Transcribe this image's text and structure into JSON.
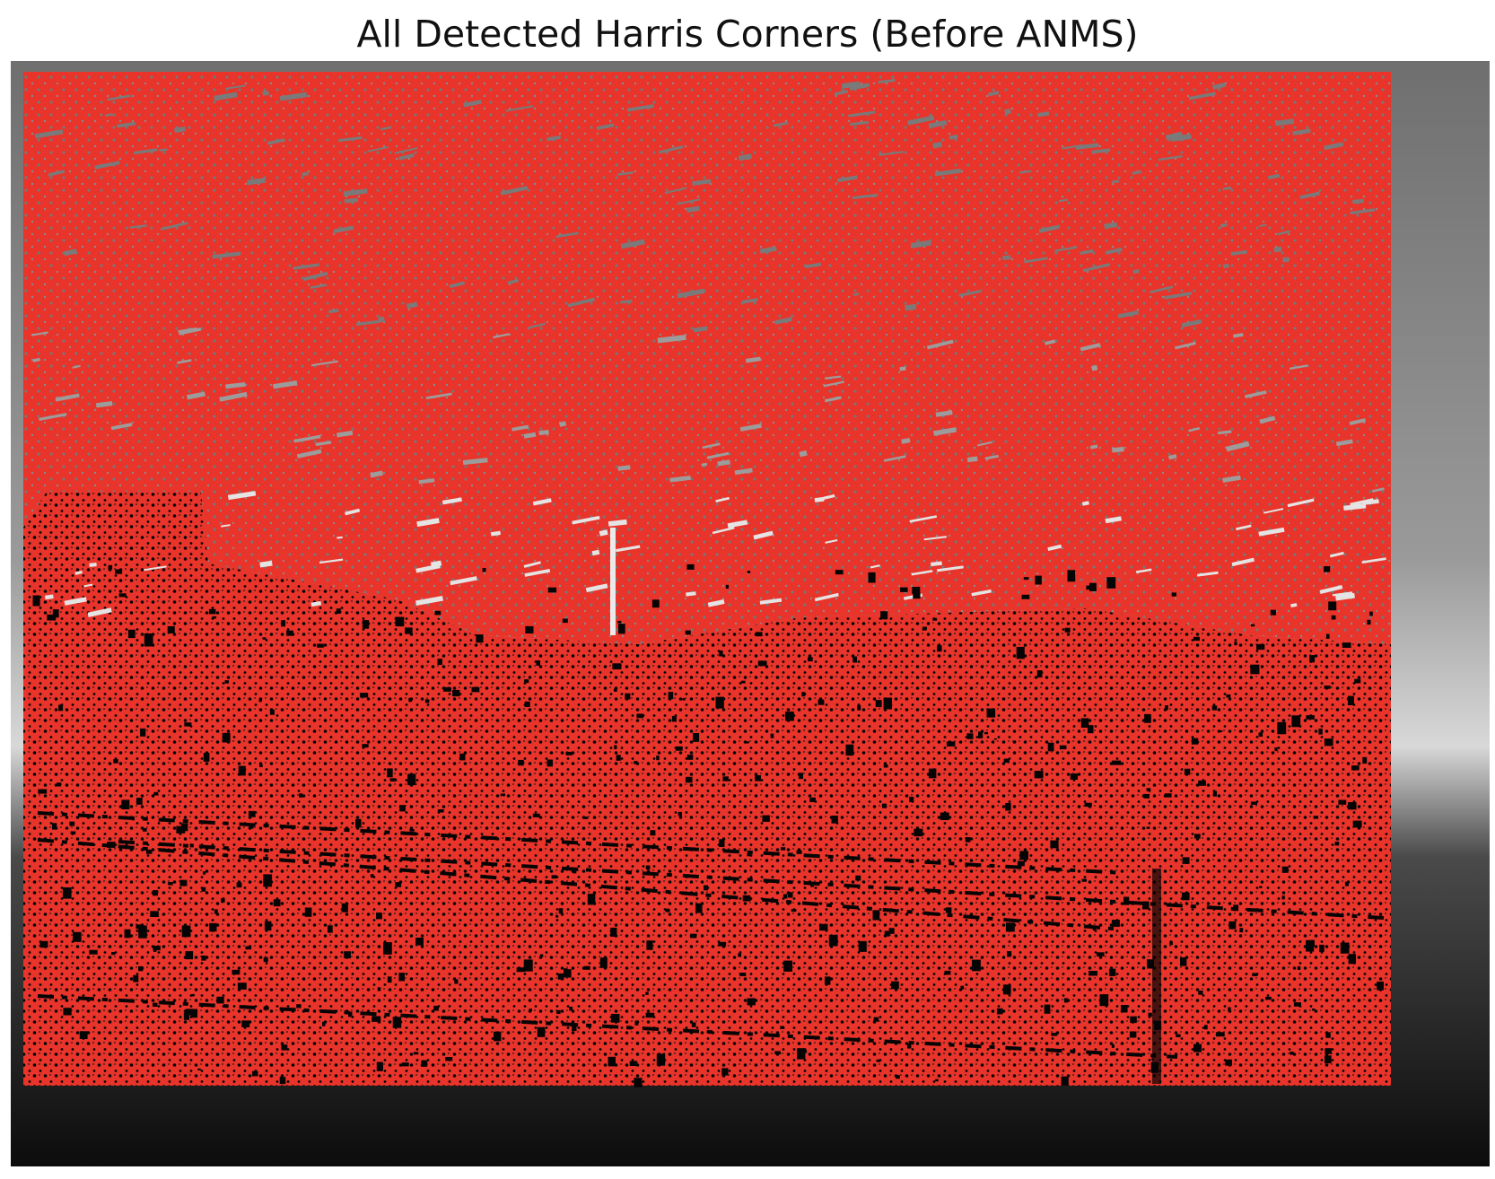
{
  "figure": {
    "title": "All Detected Harris Corners (Before ANMS)"
  },
  "image": {
    "content": "grayscale photograph overlaid with dense corner markers"
  },
  "colors": {
    "marker": "#e8342a",
    "sky_light": "#c9c9c9",
    "sky_mid": "#8a8a8a",
    "ground_dark": "#0a0a0a",
    "background": "#ffffff"
  }
}
